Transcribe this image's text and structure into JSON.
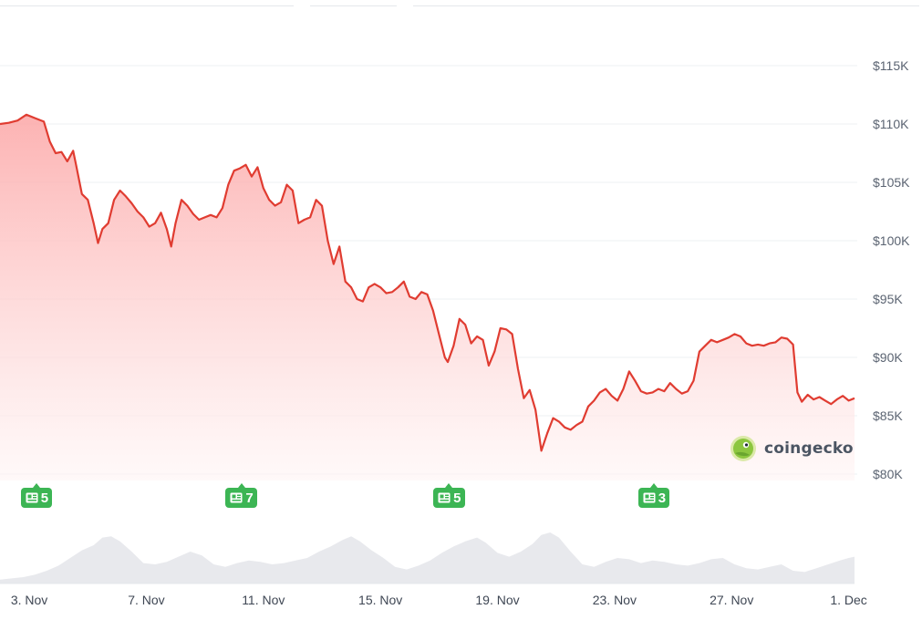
{
  "watermark": {
    "text": "coingecko",
    "icon": "gecko-logo-icon"
  },
  "colors": {
    "line": "#e03c31",
    "fill_top": "#fca5a5",
    "fill_bottom": "#fff5f5",
    "volume": "#e5e7eb",
    "badge": "#3cb554",
    "grid": "#eef0f3"
  },
  "news_markers": [
    {
      "x_day": 3.3,
      "count": "5",
      "icon": "newspaper-icon"
    },
    {
      "x_day": 10.3,
      "count": "7",
      "icon": "newspaper-icon"
    },
    {
      "x_day": 17.4,
      "count": "5",
      "icon": "newspaper-icon"
    },
    {
      "x_day": 24.4,
      "count": "3",
      "icon": "newspaper-icon"
    }
  ],
  "chart_data": {
    "type": "area",
    "x_unit": "day of period (Nov 3 = 3, Dec 1 = 31)",
    "y_unit": "USD",
    "xlim": [
      2,
      31.2
    ],
    "ylim": [
      80000,
      116000
    ],
    "y_ticks": [
      80000,
      85000,
      90000,
      95000,
      100000,
      105000,
      110000,
      115000
    ],
    "y_tick_labels": [
      "$80K",
      "$85K",
      "$90K",
      "$95K",
      "$100K",
      "$105K",
      "$110K",
      "$115K"
    ],
    "x_ticks": [
      3,
      7,
      11,
      15,
      19,
      23,
      27,
      31
    ],
    "x_tick_labels": [
      "3. Nov",
      "7. Nov",
      "11. Nov",
      "15. Nov",
      "19. Nov",
      "23. Nov",
      "27. Nov",
      "1. Dec"
    ],
    "grid": true,
    "series": [
      {
        "values": [
          [
            2.0,
            110000
          ],
          [
            2.3,
            110100
          ],
          [
            2.6,
            110300
          ],
          [
            2.9,
            110800
          ],
          [
            3.2,
            110500
          ],
          [
            3.5,
            110200
          ],
          [
            3.7,
            108500
          ],
          [
            3.9,
            107500
          ],
          [
            4.1,
            107600
          ],
          [
            4.3,
            106800
          ],
          [
            4.5,
            107700
          ],
          [
            4.6,
            106500
          ],
          [
            4.8,
            104000
          ],
          [
            5.0,
            103500
          ],
          [
            5.2,
            101500
          ],
          [
            5.35,
            99800
          ],
          [
            5.5,
            101000
          ],
          [
            5.7,
            101500
          ],
          [
            5.9,
            103500
          ],
          [
            6.1,
            104300
          ],
          [
            6.3,
            103800
          ],
          [
            6.5,
            103200
          ],
          [
            6.7,
            102500
          ],
          [
            6.9,
            102000
          ],
          [
            7.1,
            101200
          ],
          [
            7.3,
            101500
          ],
          [
            7.5,
            102400
          ],
          [
            7.7,
            101000
          ],
          [
            7.85,
            99500
          ],
          [
            8.0,
            101500
          ],
          [
            8.2,
            103500
          ],
          [
            8.4,
            103000
          ],
          [
            8.6,
            102300
          ],
          [
            8.8,
            101800
          ],
          [
            9.0,
            102000
          ],
          [
            9.2,
            102200
          ],
          [
            9.4,
            102000
          ],
          [
            9.6,
            102800
          ],
          [
            9.8,
            104800
          ],
          [
            10.0,
            106000
          ],
          [
            10.2,
            106200
          ],
          [
            10.4,
            106500
          ],
          [
            10.6,
            105500
          ],
          [
            10.8,
            106300
          ],
          [
            11.0,
            104500
          ],
          [
            11.2,
            103500
          ],
          [
            11.4,
            103000
          ],
          [
            11.6,
            103300
          ],
          [
            11.8,
            104800
          ],
          [
            12.0,
            104300
          ],
          [
            12.2,
            101500
          ],
          [
            12.4,
            101800
          ],
          [
            12.6,
            102000
          ],
          [
            12.8,
            103500
          ],
          [
            13.0,
            103000
          ],
          [
            13.2,
            100000
          ],
          [
            13.4,
            98000
          ],
          [
            13.6,
            99500
          ],
          [
            13.8,
            96500
          ],
          [
            14.0,
            96000
          ],
          [
            14.2,
            95000
          ],
          [
            14.4,
            94800
          ],
          [
            14.6,
            96000
          ],
          [
            14.8,
            96300
          ],
          [
            15.0,
            96000
          ],
          [
            15.2,
            95500
          ],
          [
            15.4,
            95600
          ],
          [
            15.6,
            96000
          ],
          [
            15.8,
            96500
          ],
          [
            16.0,
            95200
          ],
          [
            16.2,
            95000
          ],
          [
            16.4,
            95600
          ],
          [
            16.6,
            95400
          ],
          [
            16.8,
            94000
          ],
          [
            17.0,
            92000
          ],
          [
            17.2,
            90000
          ],
          [
            17.3,
            89600
          ],
          [
            17.5,
            91000
          ],
          [
            17.7,
            93300
          ],
          [
            17.9,
            92800
          ],
          [
            18.1,
            91200
          ],
          [
            18.3,
            91800
          ],
          [
            18.5,
            91500
          ],
          [
            18.7,
            89300
          ],
          [
            18.9,
            90500
          ],
          [
            19.1,
            92500
          ],
          [
            19.3,
            92400
          ],
          [
            19.5,
            92000
          ],
          [
            19.7,
            89000
          ],
          [
            19.9,
            86500
          ],
          [
            20.1,
            87200
          ],
          [
            20.3,
            85500
          ],
          [
            20.5,
            82000
          ],
          [
            20.7,
            83500
          ],
          [
            20.9,
            84800
          ],
          [
            21.1,
            84500
          ],
          [
            21.3,
            84000
          ],
          [
            21.5,
            83800
          ],
          [
            21.7,
            84200
          ],
          [
            21.9,
            84500
          ],
          [
            22.1,
            85800
          ],
          [
            22.3,
            86300
          ],
          [
            22.5,
            87000
          ],
          [
            22.7,
            87300
          ],
          [
            22.9,
            86700
          ],
          [
            23.1,
            86300
          ],
          [
            23.3,
            87300
          ],
          [
            23.5,
            88800
          ],
          [
            23.7,
            88000
          ],
          [
            23.9,
            87100
          ],
          [
            24.1,
            86900
          ],
          [
            24.3,
            87000
          ],
          [
            24.5,
            87300
          ],
          [
            24.7,
            87100
          ],
          [
            24.9,
            87800
          ],
          [
            25.1,
            87300
          ],
          [
            25.3,
            86900
          ],
          [
            25.5,
            87100
          ],
          [
            25.7,
            88000
          ],
          [
            25.9,
            90500
          ],
          [
            26.1,
            91000
          ],
          [
            26.3,
            91500
          ],
          [
            26.5,
            91300
          ],
          [
            26.7,
            91500
          ],
          [
            26.9,
            91700
          ],
          [
            27.1,
            92000
          ],
          [
            27.3,
            91800
          ],
          [
            27.5,
            91200
          ],
          [
            27.7,
            91000
          ],
          [
            27.9,
            91100
          ],
          [
            28.1,
            91000
          ],
          [
            28.3,
            91200
          ],
          [
            28.5,
            91300
          ],
          [
            28.7,
            91700
          ],
          [
            28.9,
            91600
          ],
          [
            29.1,
            91100
          ],
          [
            29.25,
            87000
          ],
          [
            29.4,
            86200
          ],
          [
            29.6,
            86800
          ],
          [
            29.8,
            86400
          ],
          [
            30.0,
            86600
          ],
          [
            30.2,
            86300
          ],
          [
            30.4,
            86000
          ],
          [
            30.6,
            86400
          ],
          [
            30.8,
            86700
          ],
          [
            31.0,
            86300
          ],
          [
            31.2,
            86500
          ]
        ]
      }
    ],
    "volume": {
      "max": 100,
      "values": [
        [
          2.0,
          6
        ],
        [
          2.4,
          8
        ],
        [
          2.8,
          10
        ],
        [
          3.2,
          14
        ],
        [
          3.6,
          20
        ],
        [
          4.0,
          28
        ],
        [
          4.4,
          40
        ],
        [
          4.8,
          52
        ],
        [
          5.2,
          60
        ],
        [
          5.5,
          72
        ],
        [
          5.8,
          74
        ],
        [
          6.1,
          66
        ],
        [
          6.5,
          50
        ],
        [
          6.9,
          32
        ],
        [
          7.3,
          30
        ],
        [
          7.7,
          34
        ],
        [
          8.1,
          42
        ],
        [
          8.5,
          50
        ],
        [
          8.9,
          44
        ],
        [
          9.3,
          30
        ],
        [
          9.7,
          26
        ],
        [
          10.1,
          32
        ],
        [
          10.5,
          36
        ],
        [
          10.9,
          34
        ],
        [
          11.3,
          30
        ],
        [
          11.7,
          32
        ],
        [
          12.1,
          36
        ],
        [
          12.5,
          40
        ],
        [
          12.9,
          50
        ],
        [
          13.3,
          58
        ],
        [
          13.7,
          68
        ],
        [
          14.0,
          74
        ],
        [
          14.3,
          66
        ],
        [
          14.7,
          52
        ],
        [
          15.1,
          40
        ],
        [
          15.5,
          26
        ],
        [
          15.9,
          22
        ],
        [
          16.3,
          28
        ],
        [
          16.7,
          36
        ],
        [
          17.1,
          48
        ],
        [
          17.5,
          58
        ],
        [
          17.9,
          66
        ],
        [
          18.3,
          72
        ],
        [
          18.6,
          64
        ],
        [
          19.0,
          48
        ],
        [
          19.4,
          42
        ],
        [
          19.8,
          50
        ],
        [
          20.2,
          62
        ],
        [
          20.5,
          76
        ],
        [
          20.8,
          80
        ],
        [
          21.1,
          72
        ],
        [
          21.5,
          50
        ],
        [
          21.9,
          30
        ],
        [
          22.3,
          26
        ],
        [
          22.7,
          34
        ],
        [
          23.1,
          40
        ],
        [
          23.5,
          38
        ],
        [
          23.9,
          32
        ],
        [
          24.3,
          36
        ],
        [
          24.7,
          34
        ],
        [
          25.1,
          30
        ],
        [
          25.5,
          28
        ],
        [
          25.9,
          32
        ],
        [
          26.3,
          38
        ],
        [
          26.7,
          40
        ],
        [
          27.1,
          30
        ],
        [
          27.5,
          24
        ],
        [
          27.9,
          22
        ],
        [
          28.3,
          26
        ],
        [
          28.7,
          30
        ],
        [
          29.1,
          20
        ],
        [
          29.5,
          18
        ],
        [
          29.9,
          24
        ],
        [
          30.3,
          30
        ],
        [
          30.7,
          36
        ],
        [
          31.0,
          40
        ],
        [
          31.2,
          42
        ]
      ]
    }
  }
}
